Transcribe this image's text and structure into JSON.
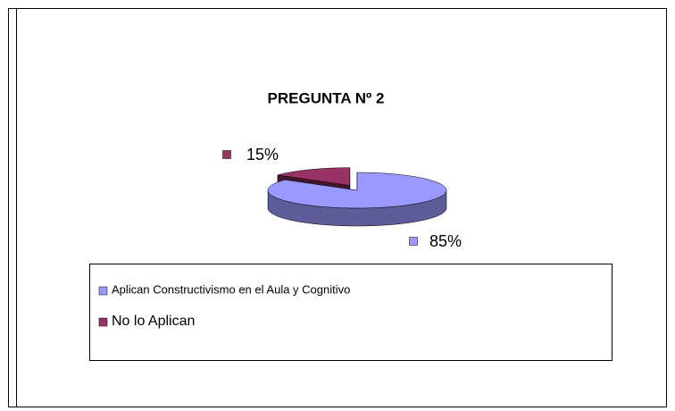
{
  "chart_data": {
    "type": "pie",
    "title": "PREGUNTA Nº 2",
    "categories": [
      "Aplican Constructivismo en el Aula y Cognitivo",
      "No lo Aplican"
    ],
    "values": [
      85,
      15
    ],
    "value_labels": [
      "85%",
      "15%"
    ],
    "colors": [
      "#9999ff",
      "#993366"
    ],
    "legend": "bottom"
  }
}
